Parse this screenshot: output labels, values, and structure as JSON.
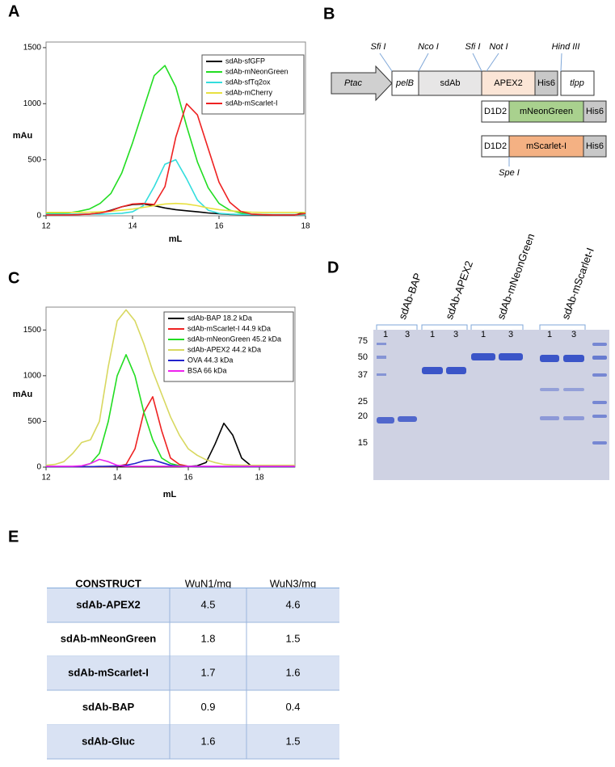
{
  "panels": {
    "a": "A",
    "b": "B",
    "c": "C",
    "d": "D",
    "e": "E"
  },
  "chart_data": [
    {
      "type": "line",
      "xlabel": "mL",
      "ylabel": "mAu",
      "xlim": [
        12,
        18
      ],
      "xticks": [
        12,
        14,
        16,
        18
      ],
      "ylim": [
        0,
        1550
      ],
      "yticks": [
        0,
        500,
        1000,
        1500
      ],
      "grid": false,
      "legend": "upper right",
      "x": [
        12,
        12.25,
        12.5,
        12.75,
        13,
        13.25,
        13.5,
        13.75,
        14,
        14.25,
        14.5,
        14.75,
        15,
        15.25,
        15.5,
        15.75,
        16,
        16.25,
        16.5,
        16.75,
        17,
        17.25,
        17.5,
        17.75,
        18
      ],
      "series": [
        {
          "name": "sdAb-sfGFP",
          "color": "#000000",
          "values": [
            10,
            10,
            10,
            12,
            15,
            25,
            50,
            80,
            100,
            105,
            90,
            70,
            55,
            45,
            35,
            25,
            18,
            12,
            10,
            8,
            8,
            8,
            8,
            8,
            30
          ]
        },
        {
          "name": "sdAb-mNeonGreen",
          "color": "#22dd22",
          "values": [
            20,
            20,
            25,
            40,
            60,
            110,
            200,
            380,
            650,
            950,
            1250,
            1340,
            1150,
            800,
            480,
            250,
            110,
            50,
            25,
            15,
            12,
            10,
            10,
            10,
            10
          ]
        },
        {
          "name": "sdAb-sfTq2ox",
          "color": "#33dddd",
          "values": [
            15,
            15,
            15,
            15,
            15,
            15,
            18,
            22,
            35,
            90,
            260,
            460,
            500,
            330,
            140,
            50,
            22,
            15,
            12,
            10,
            10,
            10,
            10,
            10,
            10
          ]
        },
        {
          "name": "sdAb-mCherry",
          "color": "#e8e040",
          "values": [
            30,
            30,
            30,
            30,
            32,
            35,
            40,
            50,
            60,
            75,
            90,
            105,
            110,
            105,
            90,
            70,
            55,
            45,
            38,
            32,
            30,
            30,
            30,
            30,
            30
          ]
        },
        {
          "name": "sdAb-mScarlet-I",
          "color": "#ee2222",
          "values": [
            8,
            8,
            8,
            10,
            15,
            25,
            45,
            80,
            105,
            110,
            100,
            260,
            700,
            1000,
            900,
            600,
            300,
            120,
            40,
            15,
            10,
            8,
            8,
            8,
            20
          ]
        }
      ]
    },
    {
      "type": "line",
      "xlabel": "mL",
      "ylabel": "mAu",
      "xlim": [
        12,
        19
      ],
      "xticks": [
        12,
        14,
        16,
        18
      ],
      "ylim": [
        0,
        1750
      ],
      "yticks": [
        0,
        500,
        1000,
        1500
      ],
      "grid": false,
      "legend": "upper right",
      "x": [
        12,
        12.25,
        12.5,
        12.75,
        13,
        13.25,
        13.5,
        13.75,
        14,
        14.25,
        14.5,
        14.75,
        15,
        15.25,
        15.5,
        15.75,
        16,
        16.25,
        16.5,
        16.75,
        17,
        17.25,
        17.5,
        17.75,
        18,
        18.25,
        18.5,
        18.75,
        19
      ],
      "series": [
        {
          "name": "sdAb-BAP  18.2 kDa",
          "color": "#000000",
          "values": [
            5,
            5,
            5,
            5,
            5,
            5,
            5,
            5,
            5,
            5,
            5,
            5,
            5,
            5,
            5,
            5,
            8,
            15,
            50,
            250,
            480,
            350,
            100,
            20,
            8,
            5,
            5,
            5,
            5
          ]
        },
        {
          "name": "sdAb-mScarlet-I  44.9 kDa",
          "color": "#ee2222",
          "values": [
            5,
            5,
            5,
            5,
            5,
            5,
            5,
            5,
            10,
            30,
            200,
            600,
            770,
            400,
            100,
            30,
            10,
            5,
            5,
            5,
            5,
            5,
            5,
            5,
            5,
            5,
            5,
            5,
            5
          ]
        },
        {
          "name": "sdAb-mNeonGreen  45.2 kDa",
          "color": "#22dd22",
          "values": [
            5,
            5,
            5,
            5,
            10,
            40,
            150,
            500,
            1000,
            1230,
            1000,
            600,
            300,
            100,
            40,
            15,
            8,
            5,
            5,
            5,
            5,
            5,
            5,
            5,
            5,
            5,
            5,
            5,
            5
          ]
        },
        {
          "name": "sdAb-APEX2  44.2 kDa",
          "color": "#d8d860",
          "values": [
            20,
            30,
            60,
            150,
            270,
            300,
            500,
            1100,
            1600,
            1720,
            1600,
            1350,
            1050,
            800,
            550,
            350,
            200,
            130,
            80,
            50,
            30,
            25,
            22,
            20,
            20,
            20,
            20,
            20,
            20
          ]
        },
        {
          "name": "OVA  44.3 kDa",
          "color": "#2222cc",
          "values": [
            5,
            5,
            5,
            5,
            5,
            5,
            8,
            10,
            12,
            20,
            40,
            70,
            80,
            50,
            20,
            10,
            8,
            5,
            5,
            5,
            5,
            5,
            5,
            5,
            5,
            5,
            5,
            5,
            5
          ]
        },
        {
          "name": "BSA  66 kDa",
          "color": "#ee22ee",
          "values": [
            10,
            10,
            10,
            10,
            15,
            40,
            85,
            60,
            20,
            10,
            10,
            10,
            10,
            10,
            10,
            10,
            10,
            10,
            10,
            10,
            10,
            10,
            10,
            10,
            10,
            10,
            10,
            10,
            10
          ]
        }
      ]
    }
  ],
  "diagram": {
    "promoter": "Ptac",
    "main": [
      "pelB",
      "sdAb",
      "APEX2",
      "His6",
      "tlpp"
    ],
    "alt1": [
      "D1D2",
      "mNeonGreen",
      "His6"
    ],
    "alt2": [
      "D1D2",
      "mScarlet-I",
      "His6"
    ],
    "sites": [
      "Sfi I",
      "Nco I",
      "Sfi I",
      "Not I",
      "Hind III",
      "Spe I"
    ]
  },
  "gel": {
    "lanes": [
      "sdAb-BAP",
      "sdAb-APEX2",
      "sdAb-mNeonGreen",
      "sdAb-mScarlet-I"
    ],
    "sublanes": [
      "1",
      "3"
    ],
    "markers": [
      "75",
      "50",
      "37",
      "25",
      "20",
      "15"
    ]
  },
  "table": {
    "header": [
      "CONSTRUCT",
      "WuN1/mg",
      "WuN3/mg"
    ],
    "rows": [
      [
        "sdAb-APEX2",
        "4.5",
        "4.6"
      ],
      [
        "sdAb-mNeonGreen",
        "1.8",
        "1.5"
      ],
      [
        "sdAb-mScarlet-I",
        "1.7",
        "1.6"
      ],
      [
        "sdAb-BAP",
        "0.9",
        "0.4"
      ],
      [
        "sdAb-Gluc",
        "1.6",
        "1.5"
      ]
    ]
  }
}
